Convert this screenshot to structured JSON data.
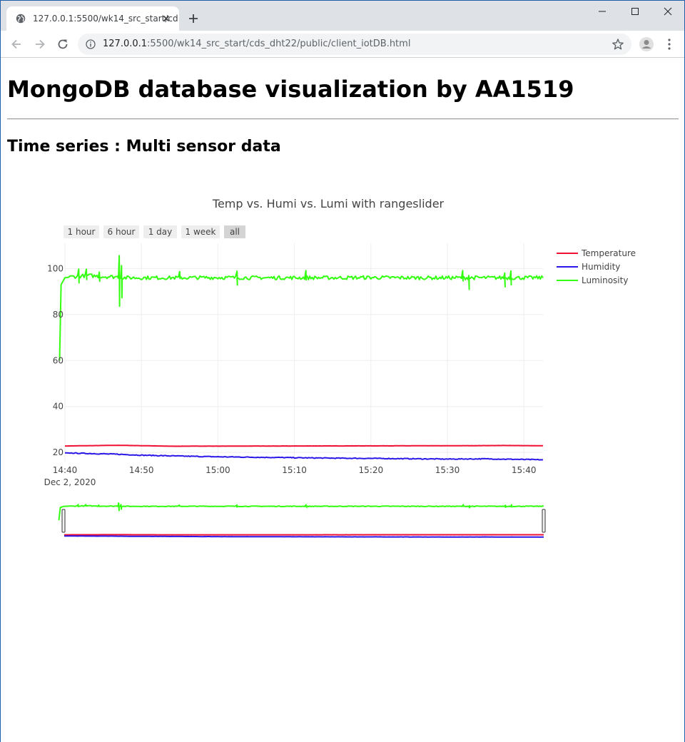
{
  "browser": {
    "tab_title": "127.0.0.1:5500/wk14_src_start/cd",
    "url_host": "127.0.0.1",
    "url_rest": ":5500/wk14_src_start/cds_dht22/public/client_iotDB.html"
  },
  "page": {
    "title": "MongoDB database visualization by AA1519",
    "subtitle": "Time series : Multi sensor data"
  },
  "chart_data": {
    "type": "line",
    "title": "Temp vs. Humi vs. Lumi with rangeslider",
    "range_selector": [
      "1 hour",
      "6 hour",
      "1 day",
      "1 week",
      "all"
    ],
    "range_selector_active": "all",
    "x_ticks": [
      "14:40",
      "14:50",
      "15:00",
      "15:10",
      "15:20",
      "15:30",
      "15:40"
    ],
    "x_date_label": "Dec 2, 2020",
    "y_ticks": [
      "20",
      "40",
      "60",
      "80",
      "100"
    ],
    "ylim": [
      16,
      111
    ],
    "xlim_minutes_from_1440": [
      0,
      62.5
    ],
    "grid": true,
    "legend_position": "top-right",
    "series": [
      {
        "name": "Temperature",
        "color": "#ee1133",
        "x": [
          0,
          7,
          14,
          30,
          50,
          58,
          62.5
        ],
        "y": [
          22.8,
          23.1,
          22.7,
          22.8,
          22.9,
          23.0,
          22.9
        ]
      },
      {
        "name": "Humidity",
        "color": "#2a18e8",
        "x": [
          0,
          7,
          10,
          15,
          20,
          30,
          35,
          40,
          50,
          55,
          62.5
        ],
        "y": [
          19.8,
          19.2,
          18.8,
          18.4,
          18.1,
          17.7,
          17.5,
          17.4,
          17.1,
          17.2,
          16.8
        ]
      },
      {
        "name": "Luminosity",
        "color": "#33ff11",
        "x": [
          -0.7,
          -0.5,
          0,
          1,
          3,
          5,
          7,
          7.3,
          10,
          15,
          20,
          25,
          30,
          35,
          40,
          45,
          50,
          55,
          60,
          62.5
        ],
        "y": [
          60,
          93,
          96,
          96.5,
          97,
          96.5,
          96.4,
          96,
          96,
          96,
          96.1,
          96,
          96,
          96,
          96.1,
          96,
          96,
          96,
          96,
          96
        ]
      }
    ]
  }
}
